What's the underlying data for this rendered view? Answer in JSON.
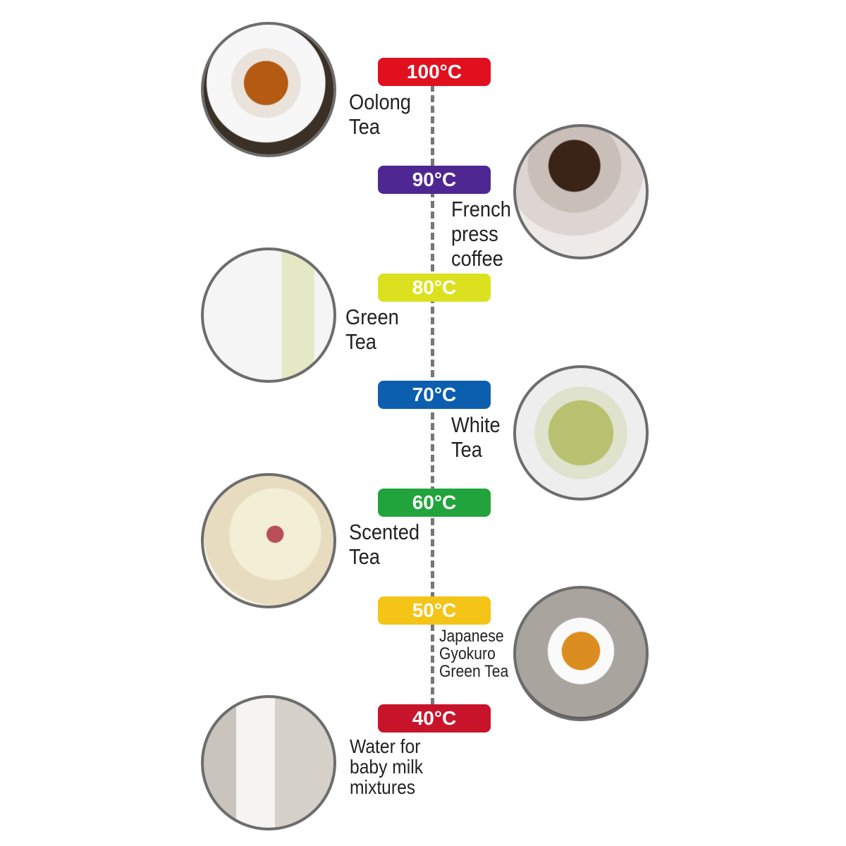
{
  "colors": {
    "100": "#e0101f",
    "90": "#4f2792",
    "80": "#dce11f",
    "70": "#0c5eae",
    "60": "#20a43b",
    "50": "#f4c417",
    "40": "#c8142a"
  },
  "items": [
    {
      "temp": "100°C",
      "label": "Oolong\nTea",
      "image": "oolong-tea-cup-icon"
    },
    {
      "temp": "90°C",
      "label": "French\npress\ncoffee",
      "image": "coffee-cup-icon"
    },
    {
      "temp": "80°C",
      "label": "Green\nTea",
      "image": "green-tea-glass-icon"
    },
    {
      "temp": "70°C",
      "label": "White\nTea",
      "image": "white-tea-glass-icon"
    },
    {
      "temp": "60°C",
      "label": "Scented\nTea",
      "image": "scented-rose-tea-icon"
    },
    {
      "temp": "50°C",
      "label": "Japanese\nGyokuro\nGreen Tea",
      "image": "gyokuro-tea-cup-icon"
    },
    {
      "temp": "40°C",
      "label": "Water for\nbaby milk\nmixtures",
      "image": "baby-bottle-icon"
    }
  ]
}
